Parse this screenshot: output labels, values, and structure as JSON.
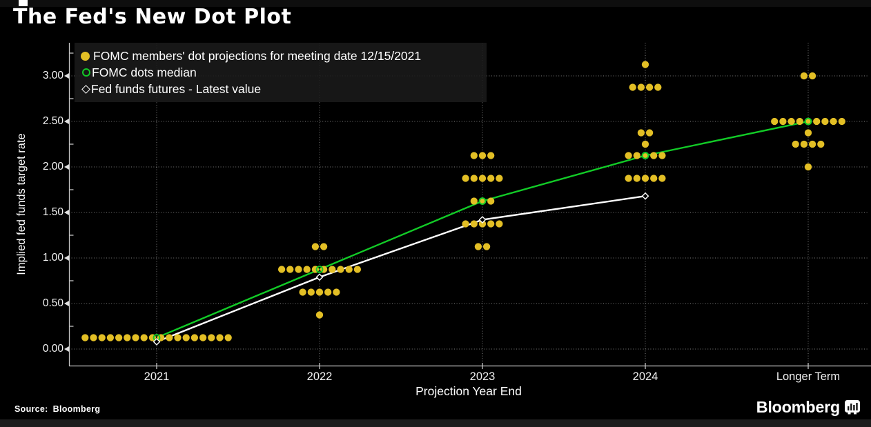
{
  "chart_data": {
    "type": "scatter",
    "title": "The Fed's New Dot Plot",
    "xlabel": "Projection Year End",
    "ylabel": "Implied fed funds target rate",
    "categories": [
      "2021",
      "2022",
      "2023",
      "2024",
      "Longer Term"
    ],
    "y_ticks": [
      "0.00",
      "0.50",
      "1.00",
      "1.50",
      "2.00",
      "2.50",
      "3.00"
    ],
    "ylim": [
      -0.18,
      3.37
    ],
    "grid": "dotted",
    "legend_position": "top-left",
    "dot_series_name": "FOMC members' dot projections for meeting date 12/15/2021",
    "dot_rows": [
      {
        "category": "2021",
        "rate": 0.125,
        "count": 18
      },
      {
        "category": "2022",
        "rate": 1.125,
        "count": 2
      },
      {
        "category": "2022",
        "rate": 0.875,
        "count": 10
      },
      {
        "category": "2022",
        "rate": 0.625,
        "count": 5
      },
      {
        "category": "2022",
        "rate": 0.375,
        "count": 1
      },
      {
        "category": "2023",
        "rate": 2.125,
        "count": 3
      },
      {
        "category": "2023",
        "rate": 1.875,
        "count": 5
      },
      {
        "category": "2023",
        "rate": 1.625,
        "count": 3
      },
      {
        "category": "2023",
        "rate": 1.375,
        "count": 5
      },
      {
        "category": "2023",
        "rate": 1.125,
        "count": 2
      },
      {
        "category": "2024",
        "rate": 3.125,
        "count": 1
      },
      {
        "category": "2024",
        "rate": 2.875,
        "count": 4
      },
      {
        "category": "2024",
        "rate": 2.375,
        "count": 2
      },
      {
        "category": "2024",
        "rate": 2.25,
        "count": 1
      },
      {
        "category": "2024",
        "rate": 2.125,
        "count": 5
      },
      {
        "category": "2024",
        "rate": 1.875,
        "count": 5
      },
      {
        "category": "Longer Term",
        "rate": 3.0,
        "count": 2
      },
      {
        "category": "Longer Term",
        "rate": 2.5,
        "count": 9
      },
      {
        "category": "Longer Term",
        "rate": 2.375,
        "count": 1
      },
      {
        "category": "Longer Term",
        "rate": 2.25,
        "count": 4
      },
      {
        "category": "Longer Term",
        "rate": 2.0,
        "count": 1
      }
    ],
    "series": [
      {
        "name": "FOMC dots median",
        "color": "#12cb27",
        "marker": "open-circle",
        "categories": [
          "2021",
          "2022",
          "2023",
          "2024",
          "Longer Term"
        ],
        "values": [
          0.125,
          0.875,
          1.625,
          2.125,
          2.5
        ]
      },
      {
        "name": "Fed funds futures - Latest value",
        "color": "#ffffff",
        "marker": "open-diamond",
        "categories": [
          "2021",
          "2022",
          "2023",
          "2024"
        ],
        "values": [
          0.08,
          0.79,
          1.42,
          1.68
        ]
      }
    ],
    "colors": {
      "dots": "#e3bf25",
      "median_line": "#12cb27",
      "futures_line": "#ffffff",
      "background": "#000000",
      "grid": "#ffffff"
    }
  },
  "legend": {
    "items": [
      {
        "marker": "filled-circle",
        "color": "#e3bf25",
        "label": "FOMC members' dot projections for meeting date 12/15/2021"
      },
      {
        "marker": "open-circle",
        "color": "#12cb27",
        "label": "FOMC dots median"
      },
      {
        "marker": "open-diamond",
        "color": "#ffffff",
        "label": "Fed funds futures - Latest value"
      }
    ]
  },
  "footer": {
    "source_label": "Source:",
    "source_value": "Bloomberg",
    "brand": "Bloomberg"
  }
}
